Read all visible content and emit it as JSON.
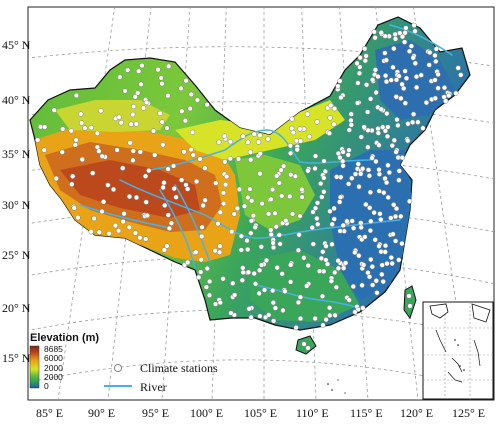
{
  "map": {
    "longitude_labels": [
      "85° E",
      "90° E",
      "95° E",
      "100° E",
      "105° E",
      "110° E",
      "115° E",
      "120° E",
      "125° E"
    ],
    "latitude_labels": [
      "45° N",
      "40° N",
      "35° N",
      "30° N",
      "25° N",
      "20° N",
      "15° N"
    ],
    "colors": {
      "high": "#b8431c",
      "upper": "#e8a317",
      "mid": "#d7e327",
      "lowmid": "#5dbb3a",
      "low": "#2d9e5b",
      "lowest": "#1f57a8",
      "river": "#45b3e6",
      "station_fill": "#ffffff",
      "station_stroke": "#777777"
    }
  },
  "legend": {
    "title": "Elevation (m)",
    "scale_labels": [
      "8685",
      "6000",
      "2000",
      "2000",
      "0"
    ],
    "stations_label": "Climate stations",
    "river_label": "River"
  },
  "inset": {
    "name": "South China Sea inset"
  }
}
